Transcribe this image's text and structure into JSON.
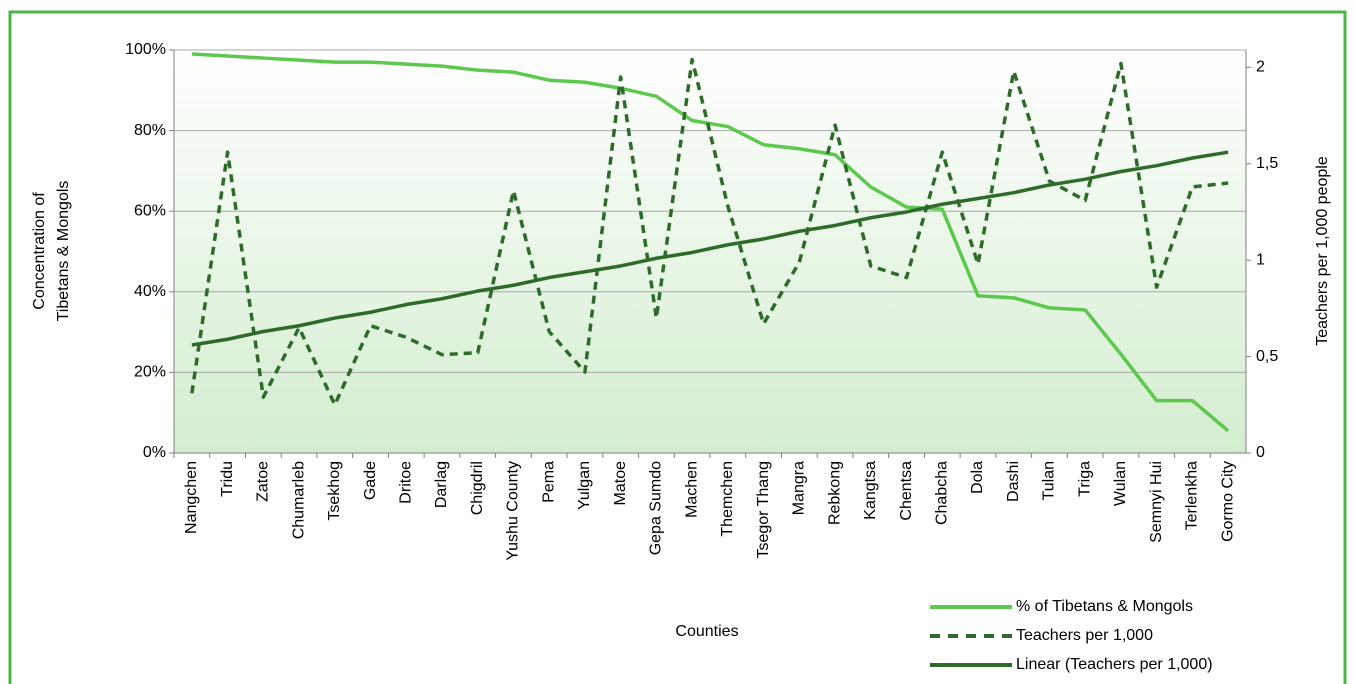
{
  "chart_data": {
    "type": "line",
    "categories": [
      "Nangchen",
      "Tridu",
      "Zatoe",
      "Chumarleb",
      "Tsekhog",
      "Gade",
      "Dritoe",
      "Darlag",
      "Chigdril",
      "Yushu County",
      "Pema",
      "Yulgan",
      "Matoe",
      "Gepa Sumdo",
      "Machen",
      "Themchen",
      "Tsegor Thang",
      "Mangra",
      "Rebkong",
      "Kangtsa",
      "Chentsa",
      "Chabcha",
      "Dola",
      "Dashi",
      "Tulan",
      "Triga",
      "Wulan",
      "Semnyi Hui",
      "Terlenkha",
      "Gormo City"
    ],
    "xlabel": "Counties",
    "ylabel": [
      "Concentration of",
      "Tibetans & Mongols"
    ],
    "y2label": "Teachers per 1,000 people",
    "ylim": [
      0,
      100
    ],
    "yticks": [
      {
        "value": 0,
        "label": "0%"
      },
      {
        "value": 20,
        "label": "20%"
      },
      {
        "value": 40,
        "label": "40%"
      },
      {
        "value": 60,
        "label": "60%"
      },
      {
        "value": 80,
        "label": "80%"
      },
      {
        "value": 100,
        "label": "100%"
      }
    ],
    "y2lim": [
      0,
      2.09
    ],
    "y2ticks": [
      0,
      {
        "value": 0.5,
        "label": "0,5"
      },
      1,
      {
        "value": 1.5,
        "label": "1,5"
      },
      2
    ],
    "grid": true,
    "legend": "bottom-right",
    "series": [
      {
        "name": "% of Tibetans & Mongols",
        "color": "#5cc84e",
        "style": "solid",
        "axis": "y",
        "values": [
          99,
          98.5,
          98,
          97.5,
          97,
          97,
          96.5,
          96,
          95,
          94.5,
          92.5,
          92,
          90.5,
          88.5,
          82.5,
          81,
          76.5,
          75.5,
          74,
          66,
          61,
          60.5,
          39,
          38.5,
          36,
          35.5,
          24.5,
          13,
          13,
          5.5
        ]
      },
      {
        "name": "Teachers per 1,000",
        "color": "#2e6b2a",
        "style": "dashed",
        "axis": "y2",
        "values": [
          0.31,
          1.56,
          0.29,
          0.65,
          0.25,
          0.66,
          0.6,
          0.51,
          0.52,
          1.36,
          0.63,
          0.42,
          1.95,
          0.7,
          2.04,
          1.28,
          0.67,
          0.99,
          1.7,
          0.97,
          0.91,
          1.56,
          0.98,
          1.98,
          1.41,
          1.31,
          2.02,
          0.86,
          1.38,
          1.4
        ]
      },
      {
        "name": "Linear (Teachers per 1,000)",
        "color": "#2e6b2a",
        "style": "solid",
        "axis": "y2",
        "values": [
          0.56,
          0.59,
          0.63,
          0.66,
          0.7,
          0.73,
          0.77,
          0.8,
          0.84,
          0.87,
          0.91,
          0.94,
          0.97,
          1.01,
          1.04,
          1.08,
          1.11,
          1.15,
          1.18,
          1.22,
          1.25,
          1.29,
          1.32,
          1.35,
          1.39,
          1.42,
          1.46,
          1.49,
          1.53,
          1.56
        ]
      }
    ]
  }
}
